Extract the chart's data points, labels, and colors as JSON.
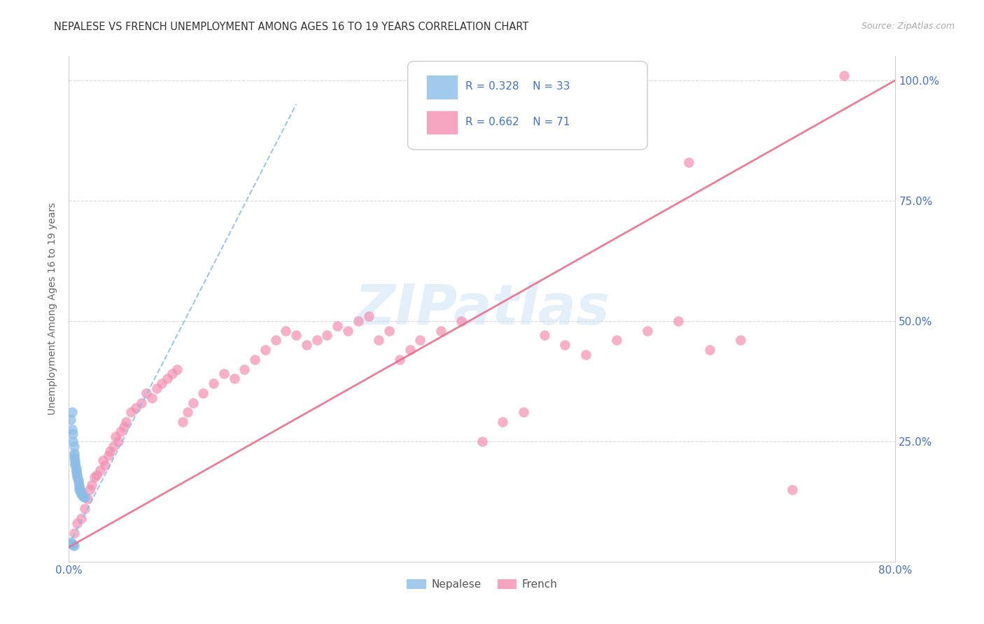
{
  "title": "NEPALESE VS FRENCH UNEMPLOYMENT AMONG AGES 16 TO 19 YEARS CORRELATION CHART",
  "source": "Source: ZipAtlas.com",
  "ylabel": "Unemployment Among Ages 16 to 19 years",
  "xlim": [
    0.0,
    0.8
  ],
  "ylim": [
    0.0,
    1.05
  ],
  "nepalese_color": "#8bbde8",
  "french_color": "#f48fb1",
  "trend_blue": "#8bbde8",
  "trend_pink": "#e8708a",
  "nepalese_R": 0.328,
  "nepalese_N": 33,
  "french_R": 0.662,
  "french_N": 71,
  "tick_color": "#4472c4",
  "grid_color": "#d0d0d0",
  "watermark": "ZIPatlas",
  "nepalese_x": [
    0.002,
    0.003,
    0.003,
    0.004,
    0.004,
    0.005,
    0.005,
    0.005,
    0.005,
    0.006,
    0.006,
    0.006,
    0.007,
    0.007,
    0.007,
    0.008,
    0.008,
    0.009,
    0.009,
    0.01,
    0.01,
    0.01,
    0.011,
    0.011,
    0.012,
    0.012,
    0.013,
    0.014,
    0.015,
    0.002,
    0.003,
    0.004,
    0.005
  ],
  "nepalese_y": [
    0.295,
    0.31,
    0.275,
    0.265,
    0.25,
    0.24,
    0.225,
    0.22,
    0.215,
    0.21,
    0.205,
    0.2,
    0.195,
    0.19,
    0.185,
    0.18,
    0.175,
    0.17,
    0.165,
    0.16,
    0.155,
    0.15,
    0.148,
    0.145,
    0.143,
    0.14,
    0.138,
    0.135,
    0.133,
    0.04,
    0.038,
    0.035,
    0.033
  ],
  "french_x": [
    0.005,
    0.008,
    0.012,
    0.015,
    0.018,
    0.02,
    0.022,
    0.025,
    0.027,
    0.03,
    0.033,
    0.035,
    0.038,
    0.04,
    0.043,
    0.045,
    0.048,
    0.05,
    0.053,
    0.055,
    0.06,
    0.065,
    0.07,
    0.075,
    0.08,
    0.085,
    0.09,
    0.095,
    0.1,
    0.105,
    0.11,
    0.115,
    0.12,
    0.13,
    0.14,
    0.15,
    0.16,
    0.17,
    0.18,
    0.19,
    0.2,
    0.21,
    0.22,
    0.23,
    0.24,
    0.25,
    0.26,
    0.27,
    0.28,
    0.29,
    0.3,
    0.31,
    0.32,
    0.33,
    0.34,
    0.36,
    0.38,
    0.4,
    0.42,
    0.44,
    0.46,
    0.48,
    0.5,
    0.53,
    0.56,
    0.59,
    0.62,
    0.65,
    0.7,
    0.6,
    0.75
  ],
  "french_y": [
    0.06,
    0.08,
    0.09,
    0.11,
    0.13,
    0.15,
    0.16,
    0.175,
    0.18,
    0.19,
    0.21,
    0.2,
    0.22,
    0.23,
    0.24,
    0.26,
    0.25,
    0.27,
    0.28,
    0.29,
    0.31,
    0.32,
    0.33,
    0.35,
    0.34,
    0.36,
    0.37,
    0.38,
    0.39,
    0.4,
    0.29,
    0.31,
    0.33,
    0.35,
    0.37,
    0.39,
    0.38,
    0.4,
    0.42,
    0.44,
    0.46,
    0.48,
    0.47,
    0.45,
    0.46,
    0.47,
    0.49,
    0.48,
    0.5,
    0.51,
    0.46,
    0.48,
    0.42,
    0.44,
    0.46,
    0.48,
    0.5,
    0.25,
    0.29,
    0.31,
    0.47,
    0.45,
    0.43,
    0.46,
    0.48,
    0.5,
    0.44,
    0.46,
    0.15,
    0.83,
    1.01
  ],
  "nep_line_x": [
    0.0,
    0.22
  ],
  "nep_line_y": [
    0.035,
    0.95
  ],
  "fr_line_x": [
    0.0,
    0.8
  ],
  "fr_line_y": [
    0.03,
    1.0
  ]
}
